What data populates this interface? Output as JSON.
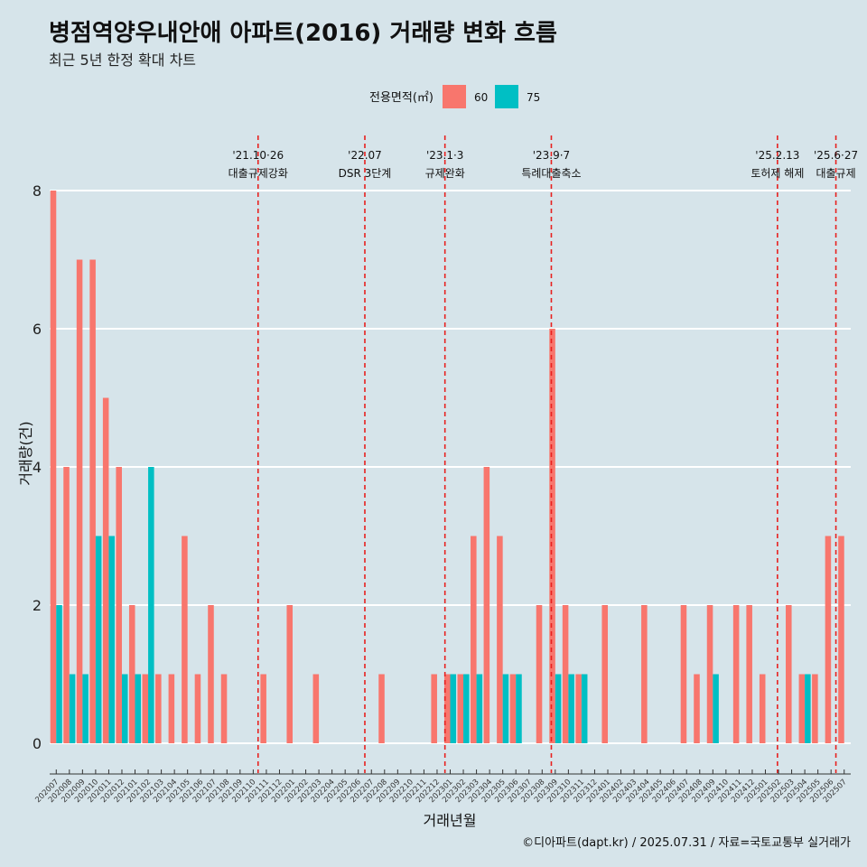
{
  "chart_data": {
    "type": "bar",
    "title": "병점역양우내안애 아파트(2016) 거래량 변화 흐름",
    "subtitle": "최근 5년 한정 확대 차트",
    "xlabel": "거래년월",
    "ylabel": "거래량(건)",
    "ylim": [
      0,
      8
    ],
    "yticks": [
      0,
      2,
      4,
      6,
      8
    ],
    "grid": "horizontal",
    "legend_title": "전용면적(㎡)",
    "legend_position": "top",
    "caption": "©디아파트(dapt.kr) / 2025.07.31 / 자료=국토교통부 실거래가",
    "categories": [
      "202007",
      "202008",
      "202009",
      "202010",
      "202011",
      "202012",
      "202101",
      "202102",
      "202103",
      "202104",
      "202105",
      "202106",
      "202107",
      "202108",
      "202109",
      "202110",
      "202111",
      "202112",
      "202201",
      "202202",
      "202203",
      "202204",
      "202205",
      "202206",
      "202207",
      "202208",
      "202209",
      "202210",
      "202211",
      "202212",
      "202301",
      "202302",
      "202303",
      "202304",
      "202305",
      "202306",
      "202307",
      "202308",
      "202309",
      "202310",
      "202311",
      "202312",
      "202401",
      "202402",
      "202403",
      "202404",
      "202405",
      "202406",
      "202407",
      "202408",
      "202409",
      "202410",
      "202411",
      "202412",
      "202501",
      "202502",
      "202503",
      "202504",
      "202505",
      "202506",
      "202507"
    ],
    "series": [
      {
        "name": "60",
        "color": "#f8766d",
        "values": [
          8,
          4,
          7,
          7,
          5,
          4,
          2,
          1,
          1,
          1,
          3,
          1,
          2,
          1,
          0,
          0,
          1,
          0,
          2,
          0,
          1,
          0,
          0,
          0,
          0,
          1,
          0,
          0,
          0,
          1,
          1,
          1,
          3,
          4,
          3,
          1,
          0,
          2,
          6,
          2,
          1,
          0,
          2,
          0,
          0,
          2,
          0,
          0,
          2,
          1,
          2,
          0,
          2,
          2,
          1,
          0,
          2,
          1,
          1,
          3,
          3
        ]
      },
      {
        "name": "75",
        "color": "#00bfc4",
        "values": [
          2,
          1,
          1,
          3,
          3,
          1,
          1,
          4,
          0,
          0,
          0,
          0,
          0,
          0,
          0,
          0,
          0,
          0,
          0,
          0,
          0,
          0,
          0,
          0,
          0,
          0,
          0,
          0,
          0,
          0,
          1,
          1,
          1,
          0,
          1,
          1,
          0,
          0,
          1,
          1,
          1,
          0,
          0,
          0,
          0,
          0,
          0,
          0,
          0,
          0,
          1,
          0,
          0,
          0,
          0,
          0,
          0,
          1,
          0,
          0,
          0
        ]
      }
    ],
    "annotations": [
      {
        "date": "'21.10·26",
        "label": "대출규제강화",
        "category": "202110",
        "offset": 0.87
      },
      {
        "date": "'22.07",
        "label": "DSR 3단계",
        "category": "202207",
        "offset": 0.0
      },
      {
        "date": "'23.1·3",
        "label": "규제완화",
        "category": "202301",
        "offset": 0.1
      },
      {
        "date": "'23.9·7",
        "label": "특례대출축소",
        "category": "202309",
        "offset": 0.2
      },
      {
        "date": "'25.2.13",
        "label": "토허제 해제",
        "category": "202502",
        "offset": 0.42
      },
      {
        "date": "'25.6·27",
        "label": "대출규제",
        "category": "202506",
        "offset": 0.87
      }
    ]
  }
}
